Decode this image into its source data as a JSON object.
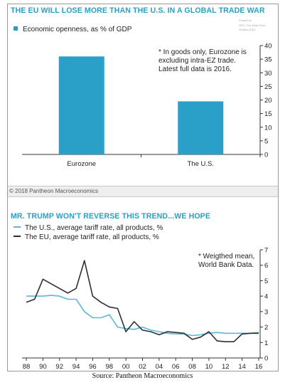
{
  "panel1": {
    "title": "THE EU WILL LOSE MORE THAN THE U.S. IN A GLOBAL TRADE WAR",
    "posted_lines": [
      "Posted on",
      "WSJ. The Daily Shot",
      "08-Mar-2018"
    ],
    "legend": "Economic openness, as % of GDP",
    "note": [
      "* In goods only, Eurozone is",
      "excluding intra-EZ trade.",
      "Latest full data is 2016."
    ],
    "bar_color": "#2aa0c8"
  },
  "copyright": "© 2018 Pantheon Macroeconomics",
  "panel2": {
    "title": "MR. TRUMP WON'T REVERSE THIS TREND...WE HOPE",
    "legend_us": "The U.S., average tariff rate, all products, %",
    "legend_eu": "The EU, average tariff rate, all products, %",
    "note": [
      "* Weigthed mean,",
      "World Bank Data."
    ],
    "us_color": "#5bb8d6",
    "eu_color": "#2b2f33"
  },
  "source": "Source: Pantheon Macroeconomics",
  "chart_data": [
    {
      "type": "bar",
      "title": "THE EU WILL LOSE MORE THAN THE U.S. IN A GLOBAL TRADE WAR",
      "categories": [
        "Eurozone",
        "The U.S."
      ],
      "series": [
        {
          "name": "Economic openness, as % of GDP",
          "values": [
            36,
            19.5
          ]
        }
      ],
      "ylim": [
        0,
        40
      ],
      "yticks": [
        0,
        5,
        10,
        15,
        20,
        25,
        30,
        35,
        40
      ],
      "y_axis_side": "right",
      "grid": false,
      "legend_position": "top-left"
    },
    {
      "type": "line",
      "title": "MR. TRUMP WON'T REVERSE THIS TREND...WE HOPE",
      "x": [
        1988,
        1989,
        1990,
        1991,
        1992,
        1993,
        1994,
        1995,
        1996,
        1997,
        1998,
        1999,
        2000,
        2001,
        2002,
        2003,
        2004,
        2005,
        2006,
        2007,
        2008,
        2009,
        2010,
        2011,
        2012,
        2013,
        2014,
        2015,
        2016
      ],
      "x_tick_labels": [
        "88",
        "90",
        "92",
        "94",
        "96",
        "98",
        "00",
        "02",
        "04",
        "06",
        "08",
        "10",
        "12",
        "14",
        "16"
      ],
      "series": [
        {
          "name": "The U.S., average tariff rate, all products, %",
          "values": [
            4.0,
            4.0,
            4.0,
            4.05,
            4.0,
            3.8,
            3.8,
            3.0,
            2.6,
            2.6,
            2.8,
            2.0,
            1.9,
            1.85,
            2.0,
            1.8,
            1.7,
            1.6,
            1.55,
            1.55,
            1.45,
            1.5,
            1.6,
            1.65,
            1.6,
            1.6,
            1.6,
            1.6,
            1.65
          ]
        },
        {
          "name": "The EU, average tariff rate, all products, %",
          "values": [
            3.6,
            3.8,
            5.1,
            4.8,
            4.5,
            4.2,
            4.5,
            6.3,
            4.0,
            3.6,
            3.3,
            3.2,
            1.7,
            2.35,
            1.8,
            1.7,
            1.5,
            1.7,
            1.65,
            1.6,
            1.2,
            1.35,
            1.7,
            1.1,
            1.05,
            1.05,
            1.55,
            1.6,
            1.6
          ]
        }
      ],
      "ylim": [
        0,
        7
      ],
      "yticks": [
        0,
        1,
        2,
        3,
        4,
        5,
        6,
        7
      ],
      "y_axis_side": "right",
      "grid": false,
      "legend_position": "top-left"
    }
  ]
}
